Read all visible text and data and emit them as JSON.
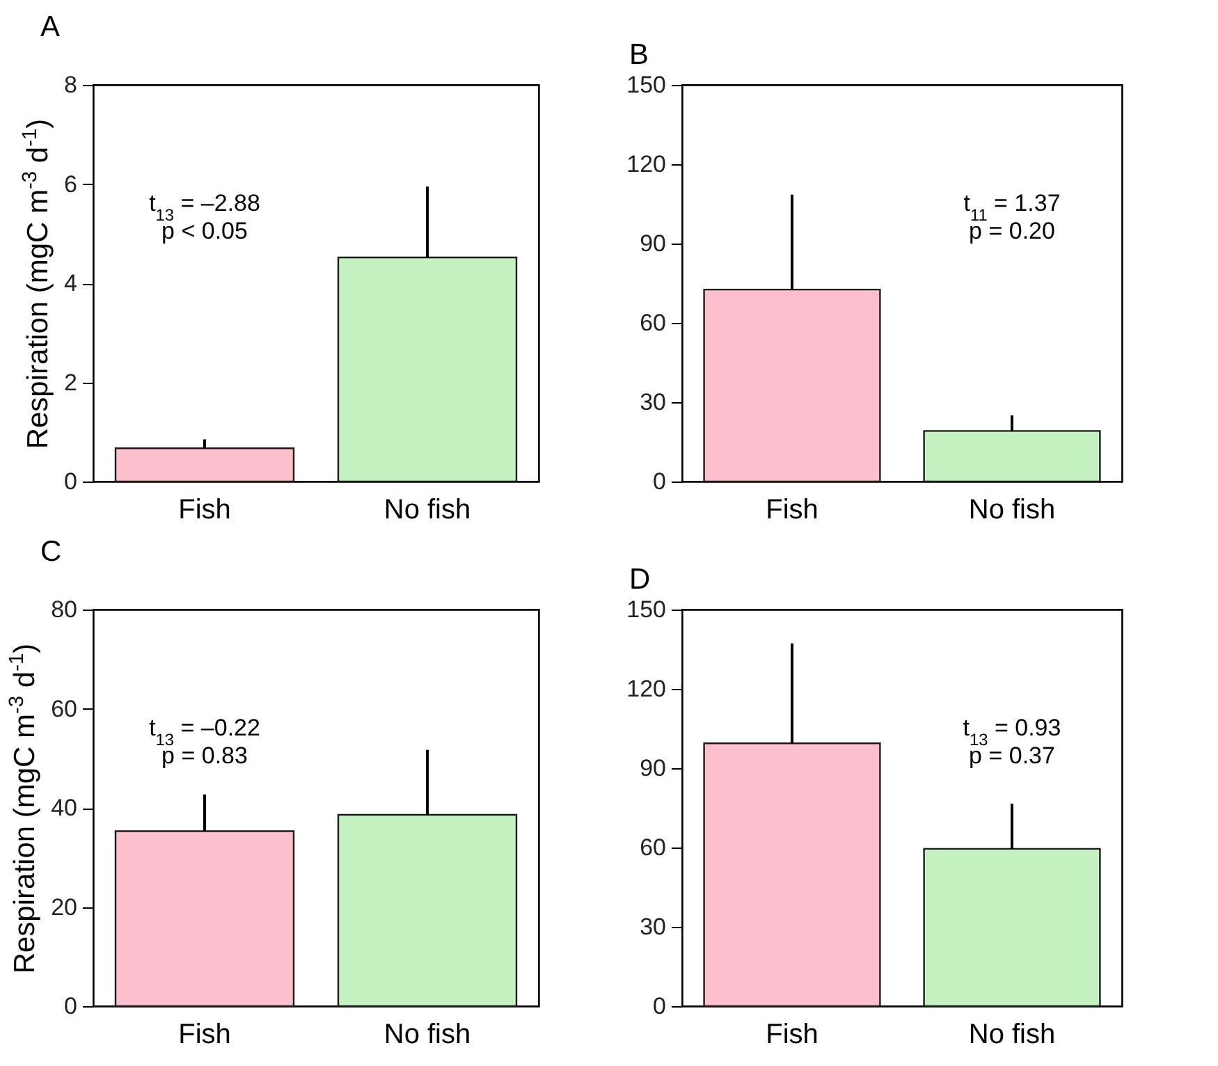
{
  "chart_data": [
    {
      "type": "bar",
      "title": "A",
      "ylabel": "Respiration (mgC m$^{-3}$ d$^{-1}$)",
      "categories": [
        "Fish",
        "No fish"
      ],
      "values": [
        0.67,
        4.52
      ],
      "errors": [
        [
          0.67,
          0.85
        ],
        [
          4.52,
          5.95
        ]
      ],
      "colors": [
        "#fbc0cb",
        "#c5f2c1"
      ],
      "ylim": [
        0,
        8
      ],
      "yticks": [
        0,
        2,
        4,
        6,
        8
      ],
      "annotations": [
        "t$_{13}$ = –2.88",
        "p < 0.05"
      ]
    },
    {
      "type": "bar",
      "title": "B",
      "categories": [
        "Fish",
        "No fish"
      ],
      "values": [
        72.6,
        19.1
      ],
      "errors": [
        [
          72.6,
          108.5
        ],
        [
          19.1,
          25
        ]
      ],
      "colors": [
        "#fbc0cb",
        "#c5f2c1"
      ],
      "ylim": [
        0,
        150
      ],
      "yticks": [
        0,
        30,
        60,
        90,
        120,
        150
      ],
      "annotations": [
        "t$_{11}$ = 1.37",
        "p = 0.20"
      ]
    },
    {
      "type": "bar",
      "title": "C",
      "ylabel": "Respiration (mgC m$^{-3}$ d$^{-1}$)",
      "categories": [
        "Fish",
        "No fish"
      ],
      "values": [
        35.3,
        38.6
      ],
      "errors": [
        [
          35.3,
          42.7
        ],
        [
          38.6,
          51.7
        ]
      ],
      "colors": [
        "#fbc0cb",
        "#c5f2c1"
      ],
      "ylim": [
        0,
        80
      ],
      "yticks": [
        0,
        20,
        40,
        60,
        80
      ],
      "annotations": [
        "t$_{13}$ = –0.22",
        "p = 0.83"
      ]
    },
    {
      "type": "bar",
      "title": "D",
      "categories": [
        "Fish",
        "No fish"
      ],
      "values": [
        99.4,
        59.5
      ],
      "errors": [
        [
          99.4,
          137.2
        ],
        [
          59.5,
          76.6
        ]
      ],
      "colors": [
        "#fbc0cb",
        "#c5f2c1"
      ],
      "ylim": [
        0,
        150
      ],
      "yticks": [
        0,
        30,
        60,
        90,
        120,
        150
      ],
      "annotations": [
        "t$_{13}$ = 0.93",
        "p = 0.37"
      ]
    }
  ]
}
